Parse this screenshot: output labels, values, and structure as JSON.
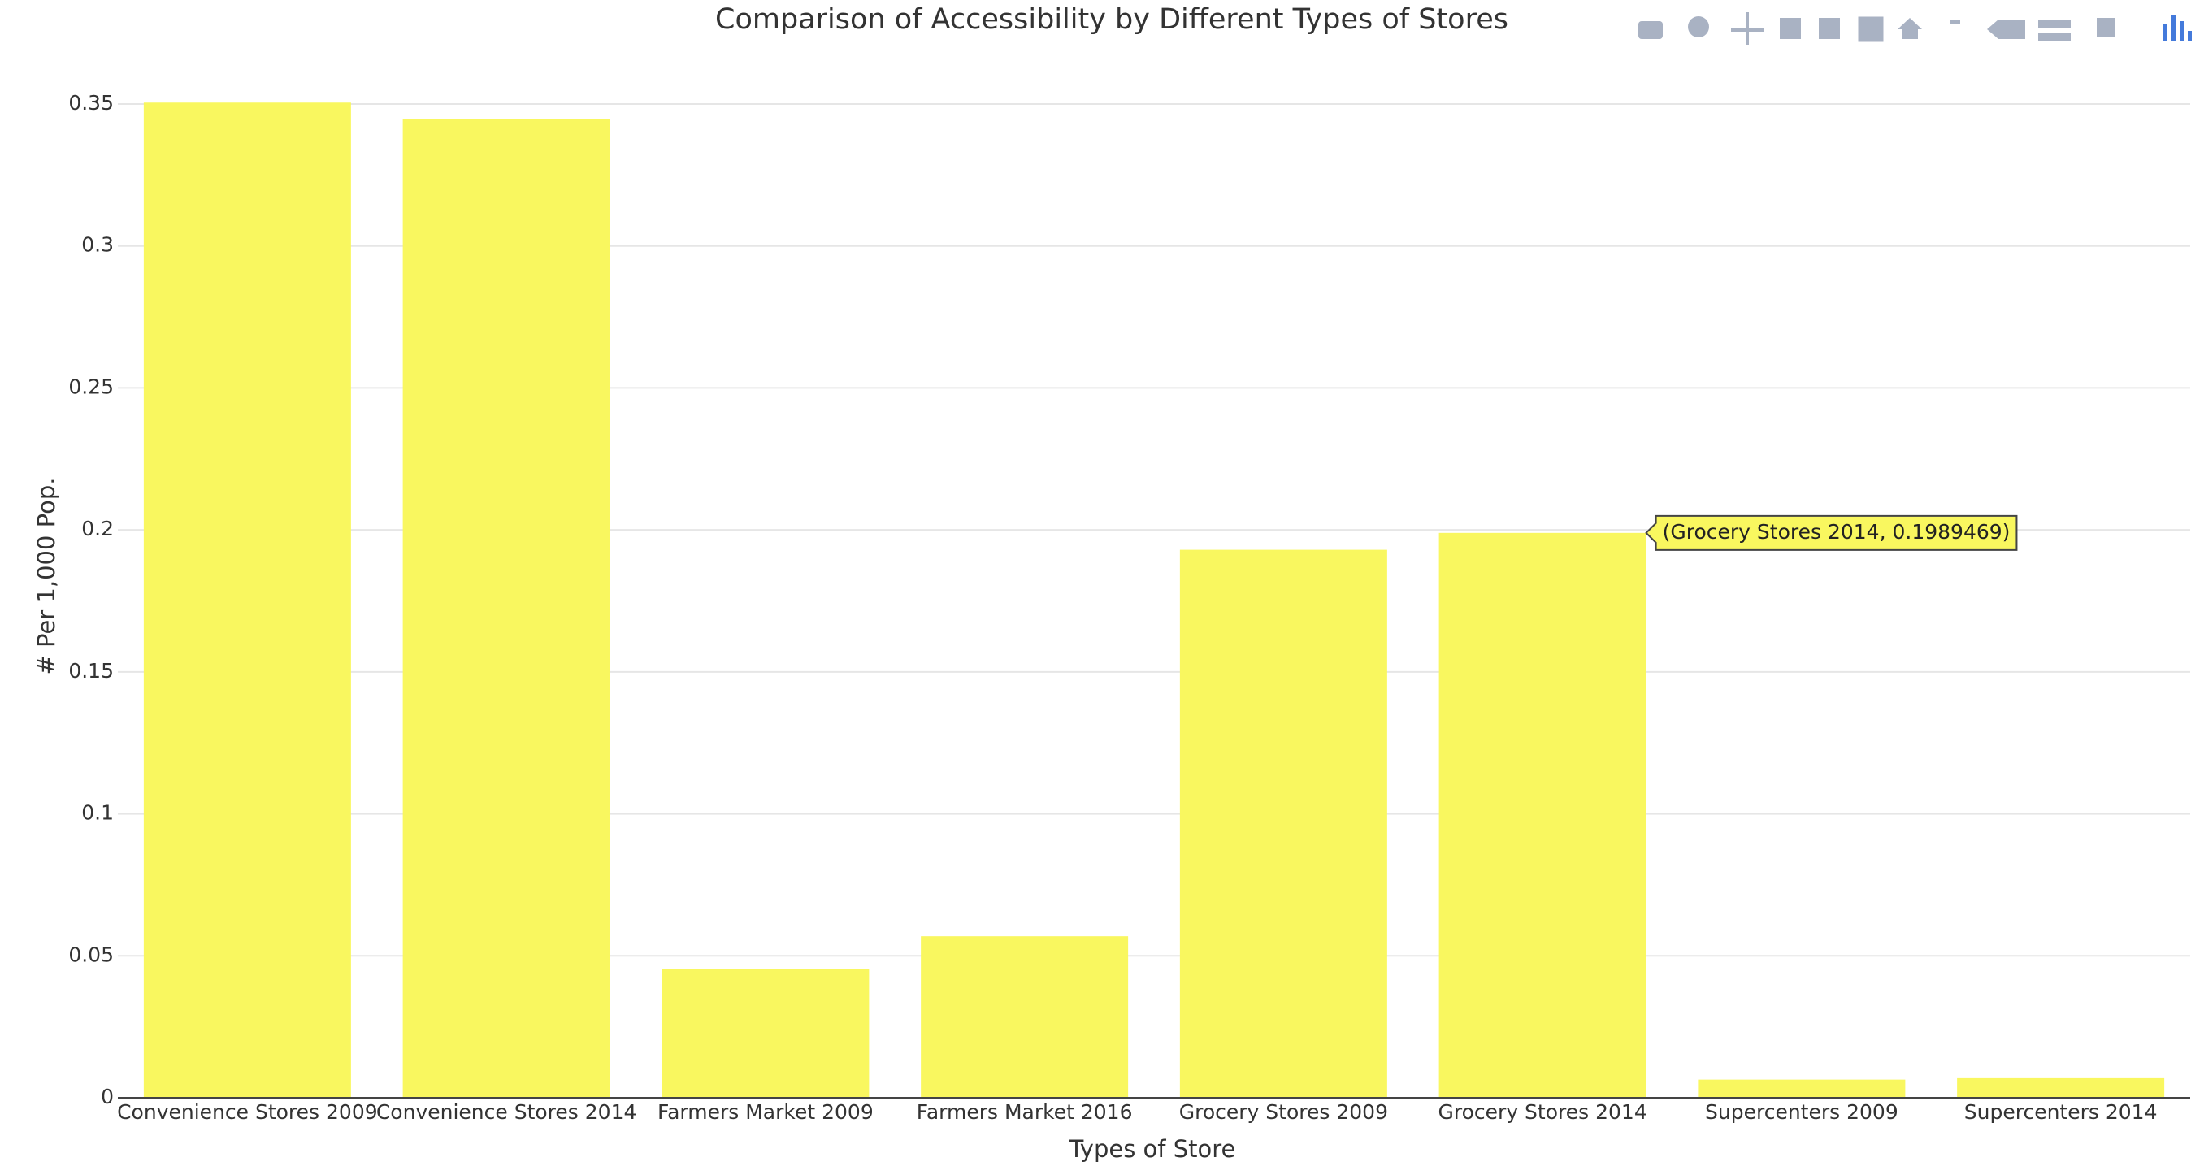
{
  "chart_data": {
    "type": "bar",
    "title": "Comparison of Accessibility by Different Types of Stores",
    "x_label": "Types of Store",
    "y_label": "# Per 1,000 Pop.",
    "categories": [
      "Convenience Stores 2009",
      "Convenience Stores 2014",
      "Farmers Market 2009",
      "Farmers Market 2016",
      "Grocery Stores 2009",
      "Grocery Stores 2014",
      "Supercenters 2009",
      "Supercenters 2014"
    ],
    "values": [
      0.3505,
      0.3446,
      0.0455,
      0.0569,
      0.193,
      0.1989469,
      0.0064,
      0.0069
    ],
    "color": "#f9f75f",
    "ylim": [
      0,
      0.35
    ],
    "yticks": [
      0,
      0.05,
      0.1,
      0.15,
      0.2,
      0.25,
      0.3,
      0.35
    ],
    "grid": true,
    "tooltip": {
      "index": 5,
      "text": "(Grocery Stores 2014, 0.1989469)"
    }
  }
}
